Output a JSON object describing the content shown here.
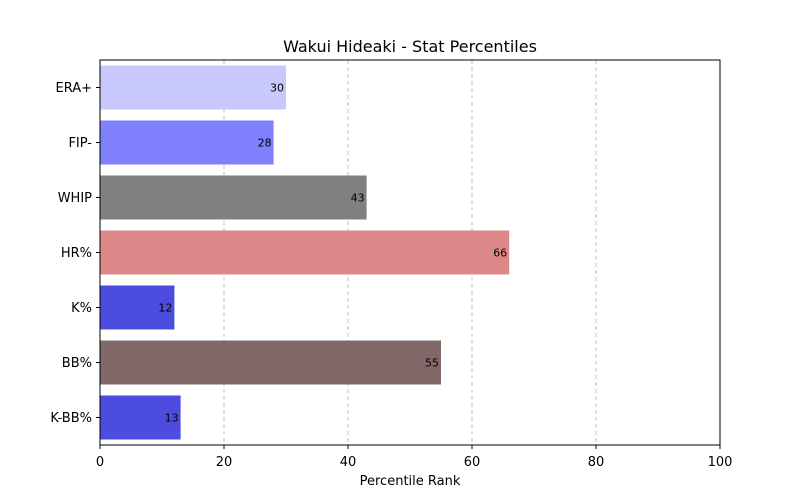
{
  "chart_data": {
    "type": "bar",
    "orientation": "horizontal",
    "title": "Wakui Hideaki - Stat Percentiles",
    "xlabel": "Percentile Rank",
    "ylabel": "",
    "xlim": [
      0,
      100
    ],
    "xticks": [
      0,
      20,
      40,
      60,
      80,
      100
    ],
    "grid": "x-dashed",
    "legend": "none",
    "categories": [
      "ERA+",
      "FIP-",
      "WHIP",
      "HR%",
      "K%",
      "BB%",
      "K-BB%"
    ],
    "values": [
      30,
      28,
      43,
      66,
      12,
      55,
      13
    ],
    "colors": [
      "#c8c8fe",
      "#8080fe",
      "#808080",
      "#dc8888",
      "#4c4cde",
      "#826868",
      "#4c4cde"
    ]
  }
}
